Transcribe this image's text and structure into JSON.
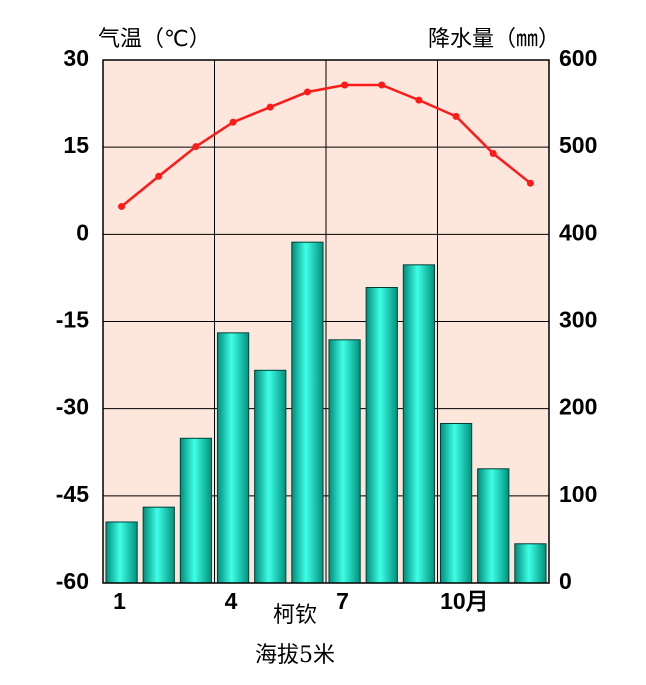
{
  "chart_data": {
    "type": "combo",
    "y_title": "气温（℃）",
    "y2_title": "降水量（㎜）",
    "annotations": [
      "柯钦",
      "海拔5米"
    ],
    "categories": [
      "1",
      null,
      null,
      "4",
      null,
      null,
      "7",
      null,
      null,
      "10月",
      null,
      null
    ],
    "series": [
      {
        "name": "气温",
        "type": "line",
        "axis": "y",
        "color": "#ff1a1a",
        "values": [
          4.8,
          10,
          15.1,
          19.3,
          21.9,
          24.5,
          25.7,
          25.7,
          23.1,
          20.3,
          13.9,
          8.8
        ]
      },
      {
        "name": "降水量",
        "type": "bar",
        "axis": "y2",
        "color": "#00e6c8",
        "values": [
          70,
          87,
          166,
          287,
          244,
          391,
          279,
          339,
          365,
          183,
          131,
          45
        ]
      }
    ],
    "ylim": [
      -60,
      30
    ],
    "yticks": [
      -60,
      -45,
      -30,
      -15,
      0,
      15,
      30
    ],
    "y2lim": [
      0,
      600
    ],
    "y2ticks": [
      0,
      100,
      200,
      300,
      400,
      500,
      600
    ],
    "grid": true,
    "background": "#fde6dc"
  }
}
